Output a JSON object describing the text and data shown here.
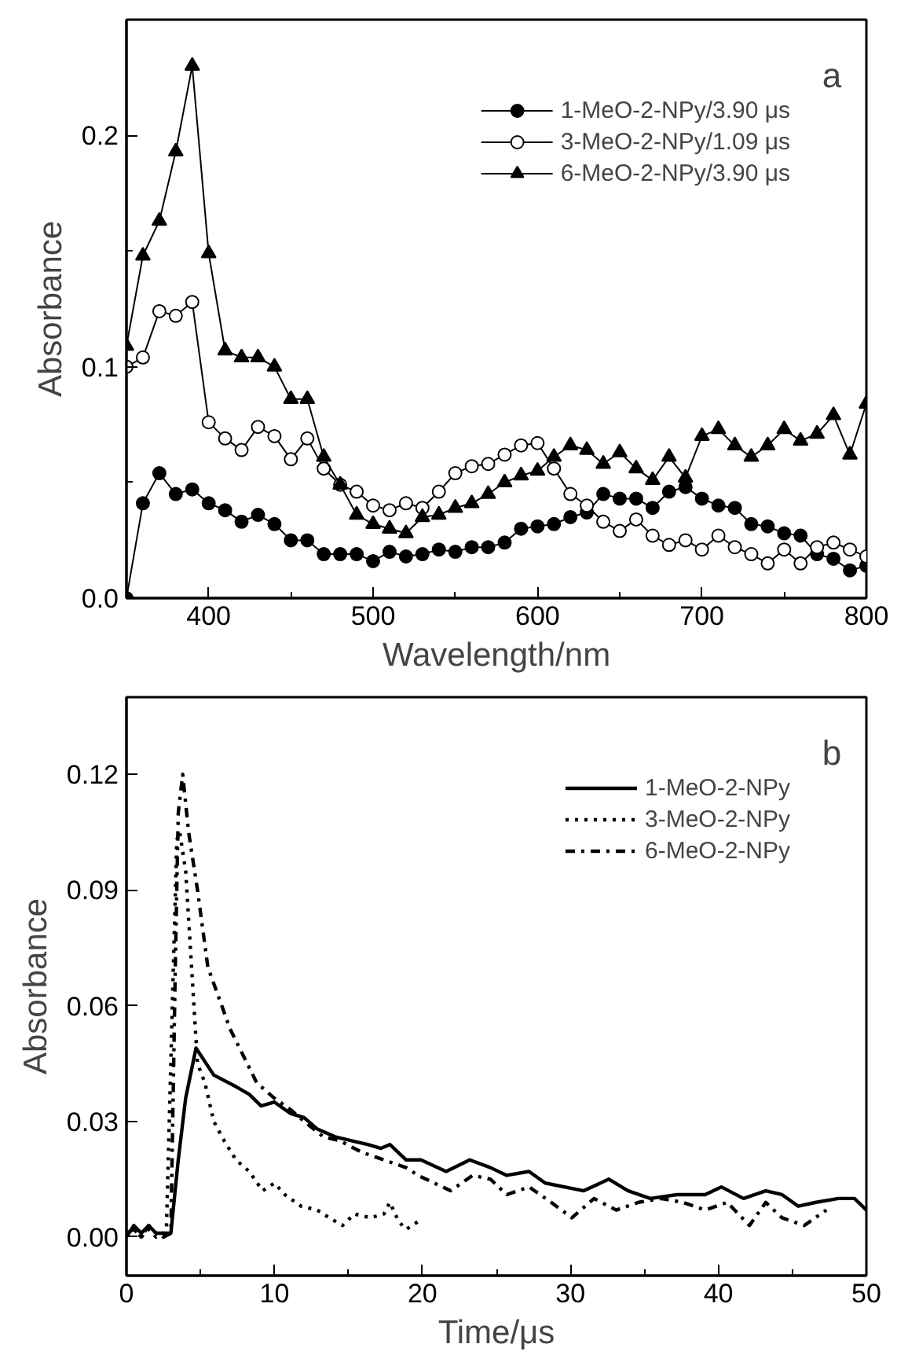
{
  "chart_data": [
    {
      "type": "line",
      "xlabel": "Wavelength/nm",
      "ylabel": "Absorbance",
      "annotations": [
        "a"
      ],
      "legend": "top right",
      "xlim": [
        350,
        800
      ],
      "xticks": [
        {
          "value": 350,
          "label": null
        },
        400,
        {
          "value": 450,
          "label": null
        },
        500,
        {
          "value": 550,
          "label": null
        },
        600,
        {
          "value": 650,
          "label": null
        },
        700,
        {
          "value": 750,
          "label": null
        },
        800
      ],
      "ylim": [
        0,
        0.25
      ],
      "yticks": [
        {
          "value": 0,
          "label": "0.0"
        },
        {
          "value": 0.05,
          "label": null
        },
        0.1,
        {
          "value": 0.15,
          "label": null
        },
        0.2
      ],
      "x": [
        350,
        360,
        370,
        380,
        390,
        400,
        410,
        420,
        430,
        440,
        450,
        460,
        470,
        480,
        490,
        500,
        510,
        520,
        530,
        540,
        550,
        560,
        570,
        580,
        590,
        600,
        610,
        620,
        630,
        640,
        650,
        660,
        670,
        680,
        690,
        700,
        710,
        720,
        730,
        740,
        750,
        760,
        770,
        780,
        790,
        800
      ],
      "series": [
        {
          "name": "1-MeO-2-NPy/3.90 μs",
          "color": "#000000",
          "marker": "circle",
          "values": [
            0.0,
            0.041,
            0.054,
            0.045,
            0.047,
            0.041,
            0.038,
            0.033,
            0.036,
            0.032,
            0.025,
            0.025,
            0.019,
            0.019,
            0.019,
            0.016,
            0.02,
            0.018,
            0.019,
            0.021,
            0.02,
            0.022,
            0.022,
            0.024,
            0.03,
            0.031,
            0.032,
            0.035,
            0.037,
            0.045,
            0.043,
            0.043,
            0.039,
            0.046,
            0.048,
            0.043,
            0.04,
            0.039,
            0.032,
            0.031,
            0.028,
            0.027,
            0.019,
            0.017,
            0.012,
            0.014
          ]
        },
        {
          "name": "3-MeO-2-NPy/1.09 μs",
          "color": "#000000",
          "marker": "circle_open",
          "values": [
            0.1,
            0.104,
            0.124,
            0.122,
            0.128,
            0.076,
            0.069,
            0.064,
            0.074,
            0.07,
            0.06,
            0.069,
            0.056,
            0.049,
            0.046,
            0.04,
            0.038,
            0.041,
            0.039,
            0.046,
            0.054,
            0.057,
            0.058,
            0.062,
            0.066,
            0.067,
            0.056,
            0.045,
            0.04,
            0.033,
            0.029,
            0.034,
            0.027,
            0.023,
            0.025,
            0.021,
            0.027,
            0.022,
            0.019,
            0.015,
            0.021,
            0.015,
            0.022,
            0.024,
            0.021,
            0.018
          ]
        },
        {
          "name": "6-MeO-2-NPy/3.90 μs",
          "color": "#000000",
          "marker": "triangle",
          "values": [
            0.109,
            0.148,
            0.163,
            0.193,
            0.23,
            0.149,
            0.107,
            0.104,
            0.104,
            0.1,
            0.086,
            0.086,
            0.061,
            0.049,
            0.036,
            0.032,
            0.03,
            0.028,
            0.035,
            0.036,
            0.039,
            0.041,
            0.045,
            0.05,
            0.053,
            0.055,
            0.061,
            0.066,
            0.064,
            0.058,
            0.063,
            0.056,
            0.051,
            0.061,
            0.052,
            0.07,
            0.073,
            0.066,
            0.061,
            0.066,
            0.073,
            0.068,
            0.071,
            0.079,
            0.062,
            0.084
          ]
        }
      ]
    },
    {
      "type": "line",
      "xlabel": "Time/μs",
      "ylabel": "Absorbance",
      "annotations": [
        "b"
      ],
      "legend": "top right",
      "xlim": [
        0,
        50
      ],
      "xticks": [
        0,
        {
          "value": 5,
          "label": null
        },
        10,
        {
          "value": 15,
          "label": null
        },
        20,
        {
          "value": 25,
          "label": null
        },
        30,
        {
          "value": 35,
          "label": null
        },
        40,
        {
          "value": 45,
          "label": null
        },
        50
      ],
      "ylim": [
        -0.01,
        0.14
      ],
      "yticks": [
        {
          "value": 0,
          "label": "0.00"
        },
        {
          "value": 0.03,
          "label": "0.03"
        },
        {
          "value": 0.06,
          "label": "0.06"
        },
        {
          "value": 0.09,
          "label": "0.09"
        },
        {
          "value": 0.12,
          "label": "0.12"
        }
      ],
      "series": [
        {
          "name": "1-MeO-2-NPy",
          "color": "#000000",
          "line_style": "solid",
          "x": [
            0,
            0.5,
            1,
            1.5,
            2,
            2.5,
            3,
            3.5,
            4,
            4.7,
            5.9,
            7.4,
            8.3,
            9.1,
            10,
            11.1,
            12,
            12.9,
            14.1,
            15.2,
            16.3,
            17.2,
            17.8,
            18.9,
            19.9,
            21.6,
            23.2,
            24.6,
            25.7,
            27.2,
            28.3,
            30.9,
            32.6,
            33.9,
            35.4,
            37.2,
            39.1,
            40.2,
            41.7,
            43.2,
            44.3,
            45.4,
            46.6,
            48.1,
            49.2,
            50
          ],
          "values": [
            0.0,
            0.003,
            0.001,
            0.003,
            0.001,
            0.001,
            0.001,
            0.02,
            0.036,
            0.049,
            0.042,
            0.039,
            0.037,
            0.034,
            0.035,
            0.032,
            0.031,
            0.028,
            0.026,
            0.025,
            0.024,
            0.023,
            0.024,
            0.02,
            0.02,
            0.017,
            0.02,
            0.018,
            0.016,
            0.017,
            0.014,
            0.012,
            0.015,
            0.012,
            0.01,
            0.011,
            0.011,
            0.013,
            0.01,
            0.012,
            0.011,
            0.008,
            0.009,
            0.01,
            0.01,
            0.007
          ]
        },
        {
          "name": "3-MeO-2-NPy",
          "color": "#000000",
          "line_style": "dotted",
          "x": [
            0,
            0.5,
            1,
            1.5,
            2,
            2.5,
            2.7,
            3.1,
            3.4,
            3.6,
            4.0,
            4.4,
            4.8,
            5.3,
            5.9,
            6.6,
            7.4,
            8.3,
            9.2,
            10,
            10.7,
            11.8,
            12.9,
            13.7,
            14.6,
            15.4,
            16.5,
            17.4,
            17.8,
            18.4,
            18.9,
            19.7
          ],
          "values": [
            0.001,
            0.002,
            0.0,
            0.002,
            0.0,
            0.001,
            0.002,
            0.06,
            0.103,
            0.105,
            0.095,
            0.07,
            0.045,
            0.04,
            0.03,
            0.025,
            0.02,
            0.017,
            0.012,
            0.014,
            0.011,
            0.008,
            0.007,
            0.005,
            0.003,
            0.006,
            0.005,
            0.006,
            0.009,
            0.004,
            0.002,
            0.004
          ]
        },
        {
          "name": "6-MeO-2-NPy",
          "color": "#000000",
          "line_style": "dashdot",
          "x": [
            0,
            0.5,
            1,
            1.5,
            2,
            2.5,
            3,
            3.3,
            3.5,
            3.8,
            4.2,
            4.8,
            5.5,
            7.0,
            7.9,
            8.8,
            10,
            11.1,
            12,
            13.3,
            14.4,
            15.9,
            17.4,
            18.9,
            19.7,
            21.9,
            23.4,
            24.6,
            25.7,
            27.2,
            28.7,
            30.1,
            31.6,
            33.1,
            34.6,
            36.1,
            37.6,
            39.1,
            40.6,
            42.1,
            43.2,
            44.3,
            45.8,
            47.3
          ],
          "values": [
            0.001,
            0.002,
            0.0,
            0.003,
            0.001,
            0.0,
            0.001,
            0.07,
            0.11,
            0.12,
            0.105,
            0.09,
            0.07,
            0.054,
            0.047,
            0.04,
            0.036,
            0.033,
            0.03,
            0.026,
            0.025,
            0.022,
            0.02,
            0.018,
            0.016,
            0.012,
            0.016,
            0.015,
            0.011,
            0.013,
            0.009,
            0.005,
            0.01,
            0.007,
            0.009,
            0.01,
            0.009,
            0.007,
            0.009,
            0.003,
            0.009,
            0.005,
            0.003,
            0.007
          ]
        }
      ]
    }
  ]
}
